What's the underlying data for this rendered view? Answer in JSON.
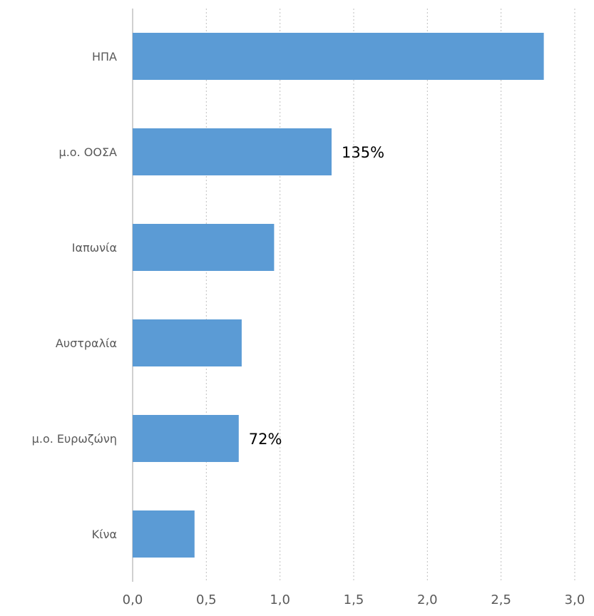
{
  "chart_data": {
    "type": "bar",
    "orientation": "horizontal",
    "categories": [
      "ΗΠΑ",
      "μ.ο. ΟΟΣΑ",
      "Ιαπωνία",
      "Αυστραλία",
      "μ.ο. Ευρωζώνη",
      "Κίνα"
    ],
    "values": [
      2.79,
      1.35,
      0.96,
      0.74,
      0.72,
      0.42
    ],
    "data_labels": [
      "",
      "135%",
      "",
      "",
      "72%",
      ""
    ],
    "xlim": [
      0,
      3.0
    ],
    "xticks": [
      "0,0",
      "0,5",
      "1,0",
      "1,5",
      "2,0",
      "2,5",
      "3,0"
    ],
    "grid": "vertical-dotted",
    "bar_color": "#5b9bd5",
    "grid_color": "#bfbfbf",
    "axis_color": "#d0d0d0"
  }
}
